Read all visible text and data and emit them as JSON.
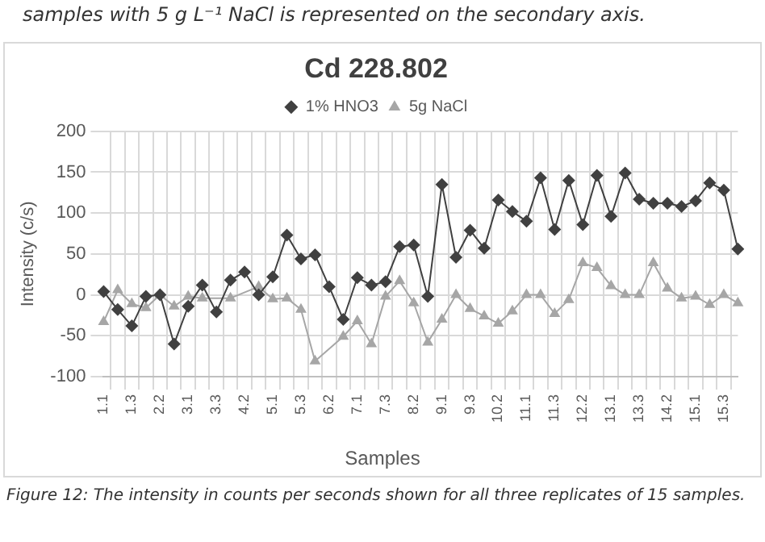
{
  "chart_data": {
    "type": "line",
    "title": "Cd 228.802",
    "xlabel": "Samples",
    "ylabel": "Intensity (c/s)",
    "annotations": [
      "samples with 5 g L⁻¹ NaCl is represented on the secondary axis.",
      "Figure 12: The intensity in counts per seconds shown for all three replicates of 15 samples."
    ],
    "categories": [
      "1.1",
      null,
      "1.3",
      null,
      "2.2",
      null,
      "3.1",
      null,
      "3.3",
      null,
      "4.2",
      null,
      "5.1",
      null,
      "5.3",
      null,
      "6.2",
      null,
      "7.1",
      null,
      "7.3",
      null,
      "8.2",
      null,
      "9.1",
      null,
      "9.3",
      null,
      "10.2",
      null,
      "11.1",
      null,
      "11.3",
      null,
      "12.2",
      null,
      "13.1",
      null,
      "13.3",
      null,
      "14.2",
      null,
      "15.1",
      null,
      "15.3",
      null
    ],
    "series": [
      {
        "name": "1% HNO3",
        "color": "#404040",
        "marker": "diamond",
        "values": [
          4,
          -18,
          -38,
          -2,
          0,
          -60,
          -14,
          12,
          -21,
          18,
          28,
          0,
          22,
          73,
          44,
          49,
          10,
          -30,
          21,
          12,
          16,
          59,
          61,
          -2,
          135,
          46,
          79,
          57,
          116,
          102,
          90,
          143,
          80,
          140,
          86,
          146,
          96,
          149,
          117,
          112,
          112,
          108,
          115,
          137,
          128,
          56
        ]
      },
      {
        "name": "5g NaCl",
        "color": "#a6a6a6",
        "marker": "triangle",
        "values": [
          -33,
          6,
          -11,
          -16,
          0,
          -14,
          -2,
          -4,
          null,
          -4,
          null,
          10,
          -5,
          -4,
          -18,
          -81,
          null,
          -51,
          -32,
          -60,
          -2,
          17,
          -10,
          -58,
          -30,
          0,
          -17,
          -26,
          -35,
          -20,
          0,
          0,
          -23,
          -6,
          39,
          33,
          11,
          0,
          0,
          39,
          8,
          -4,
          -2,
          -12,
          0,
          -10
        ]
      }
    ],
    "ylim": [
      -100,
      200
    ],
    "yticks": [
      -100,
      -50,
      0,
      50,
      100,
      150,
      200
    ],
    "grid": true,
    "legend": "top"
  }
}
